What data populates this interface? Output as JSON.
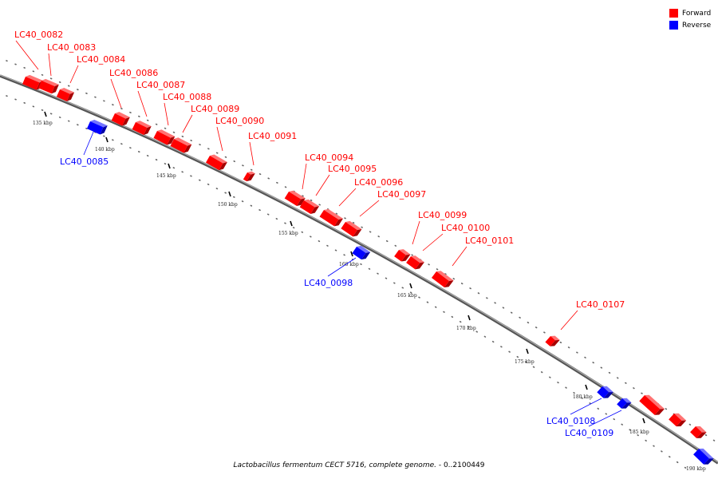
{
  "legend": [
    {
      "label": "Forward",
      "color": "#ff0000"
    },
    {
      "label": "Reverse",
      "color": "#0000ff"
    }
  ],
  "caption": {
    "organism": "Lactobacillus fermentum CECT 5716, complete genome.",
    "range": " - 0..2100449"
  },
  "colors": {
    "forward": "#ff0000",
    "reverse": "#0000ff",
    "backbone": "#808080"
  },
  "ticks": [
    {
      "kbp": 135,
      "label": "135 kbp"
    },
    {
      "kbp": 140,
      "label": "140 kbp"
    },
    {
      "kbp": 145,
      "label": "145 kbp"
    },
    {
      "kbp": 150,
      "label": "150 kbp"
    },
    {
      "kbp": 155,
      "label": "155 kbp"
    },
    {
      "kbp": 160,
      "label": "160 kbp"
    },
    {
      "kbp": 165,
      "label": "165 kbp"
    },
    {
      "kbp": 170,
      "label": "170 kbp"
    },
    {
      "kbp": 175,
      "label": "175 kbp"
    },
    {
      "kbp": 180,
      "label": "180 kbp"
    },
    {
      "kbp": 185,
      "label": "185 kbp"
    },
    {
      "kbp": 190,
      "label": "190 kbp"
    }
  ],
  "genes": [
    {
      "id": "LC40_0082",
      "strand": "forward"
    },
    {
      "id": "LC40_0083",
      "strand": "forward"
    },
    {
      "id": "LC40_0084",
      "strand": "forward"
    },
    {
      "id": "LC40_0085",
      "strand": "reverse"
    },
    {
      "id": "LC40_0086",
      "strand": "forward"
    },
    {
      "id": "LC40_0087",
      "strand": "forward"
    },
    {
      "id": "LC40_0088",
      "strand": "forward"
    },
    {
      "id": "LC40_0089",
      "strand": "forward"
    },
    {
      "id": "LC40_0090",
      "strand": "forward"
    },
    {
      "id": "LC40_0091",
      "strand": "forward"
    },
    {
      "id": "LC40_0094",
      "strand": "forward"
    },
    {
      "id": "LC40_0095",
      "strand": "forward"
    },
    {
      "id": "LC40_0096",
      "strand": "forward"
    },
    {
      "id": "LC40_0097",
      "strand": "forward"
    },
    {
      "id": "LC40_0098",
      "strand": "reverse"
    },
    {
      "id": "LC40_0099",
      "strand": "forward"
    },
    {
      "id": "LC40_0100",
      "strand": "forward"
    },
    {
      "id": "LC40_0101",
      "strand": "forward"
    },
    {
      "id": "LC40_0107",
      "strand": "forward"
    },
    {
      "id": "LC40_0108",
      "strand": "reverse"
    },
    {
      "id": "LC40_0109",
      "strand": "reverse"
    }
  ]
}
